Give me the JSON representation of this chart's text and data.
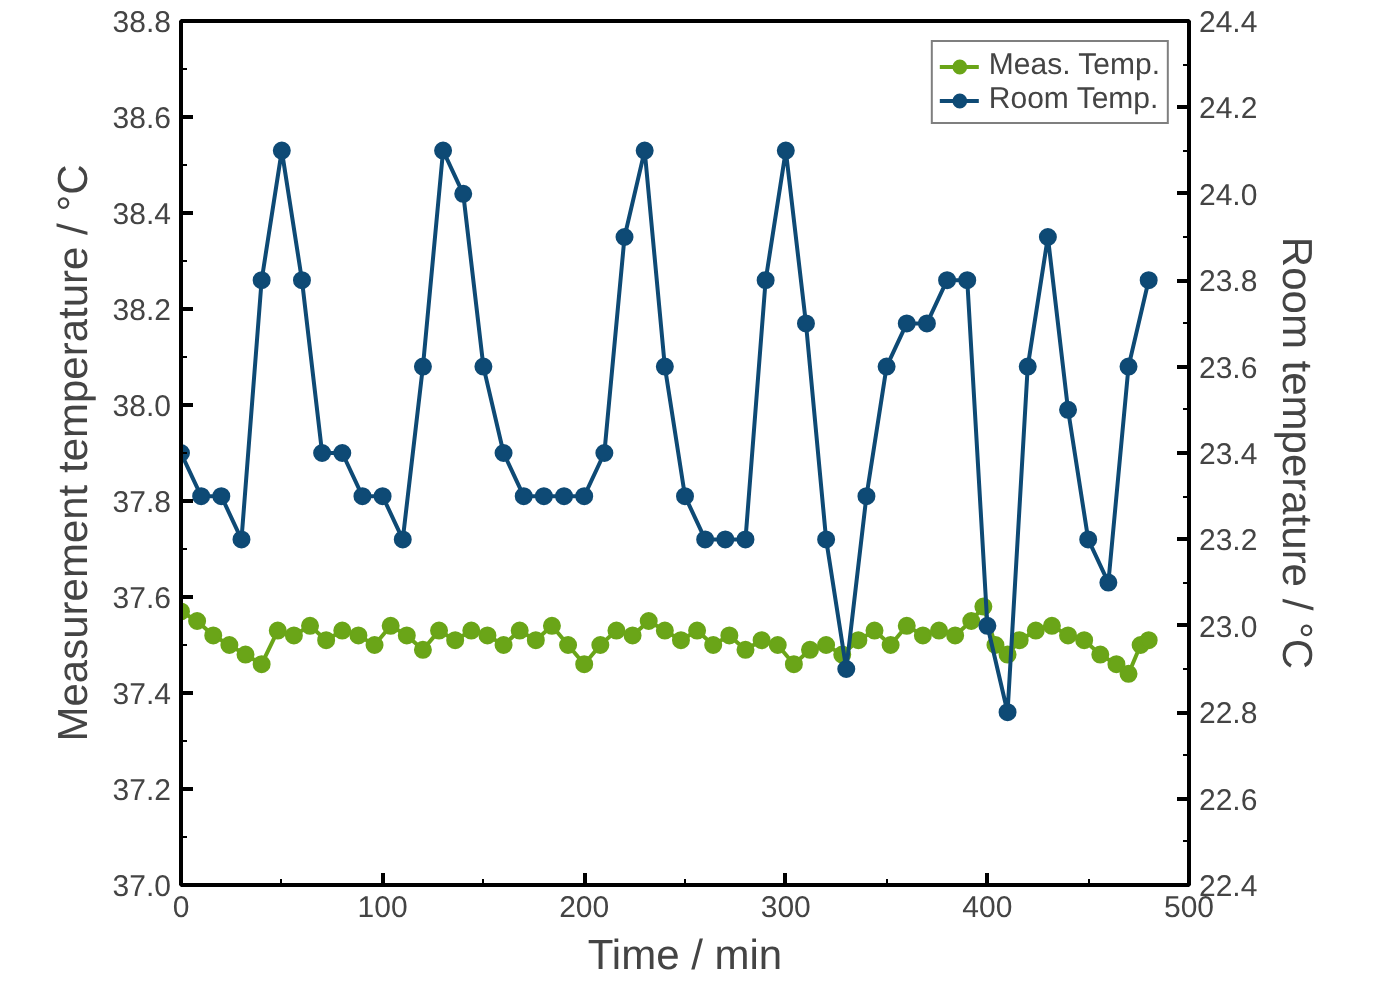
{
  "chart_data": {
    "type": "line",
    "xlabel": "Time / min",
    "ylabel": "Measurement temperature / °C",
    "y2label": "Room temperature / °C",
    "xlim": [
      0,
      500
    ],
    "xticks": [
      0,
      100,
      200,
      300,
      400,
      500
    ],
    "ylim": [
      37.0,
      38.8
    ],
    "yticks": [
      {
        "value": 37.0,
        "label": "37.0"
      },
      37.2,
      37.4,
      37.6,
      37.8,
      {
        "value": 38.0,
        "label": "38.0"
      },
      38.2,
      38.4,
      38.6,
      38.8
    ],
    "y2lim": [
      22.4,
      24.4
    ],
    "y2ticks": [
      22.4,
      22.6,
      22.8,
      {
        "value": 23.0,
        "label": "23.0"
      },
      23.2,
      23.4,
      23.6,
      23.8,
      {
        "value": 24.0,
        "label": "24.0"
      },
      24.2,
      24.4
    ],
    "legend": "top right",
    "marker": "circle",
    "grid": false,
    "series": [
      {
        "name": "Meas. Temp.",
        "color": "#6aa518",
        "x": [
          0,
          8,
          16,
          24,
          32,
          40,
          48,
          56,
          64,
          72,
          80,
          88,
          96,
          104,
          112,
          120,
          128,
          136,
          144,
          152,
          160,
          168,
          176,
          184,
          192,
          200,
          208,
          216,
          224,
          232,
          240,
          248,
          256,
          264,
          272,
          280,
          288,
          296,
          304,
          312,
          320,
          328,
          336,
          344,
          352,
          360,
          368,
          376,
          384,
          392,
          398,
          404,
          410,
          416,
          424,
          432,
          440,
          448,
          456,
          464,
          470,
          476,
          480
        ],
        "values": [
          37.57,
          37.55,
          37.52,
          37.5,
          37.48,
          37.46,
          37.53,
          37.52,
          37.54,
          37.51,
          37.53,
          37.52,
          37.5,
          37.54,
          37.52,
          37.49,
          37.53,
          37.51,
          37.53,
          37.52,
          37.5,
          37.53,
          37.51,
          37.54,
          37.5,
          37.46,
          37.5,
          37.53,
          37.52,
          37.55,
          37.53,
          37.51,
          37.53,
          37.5,
          37.52,
          37.49,
          37.51,
          37.5,
          37.46,
          37.49,
          37.5,
          37.48,
          37.51,
          37.53,
          37.5,
          37.54,
          37.52,
          37.53,
          37.52,
          37.55,
          37.58,
          37.5,
          37.48,
          37.51,
          37.53,
          37.54,
          37.52,
          37.51,
          37.48,
          37.46,
          37.44,
          37.5,
          37.51
        ]
      },
      {
        "name": "Room Temp.",
        "color": "#0e4a75",
        "axis": "y2",
        "x": [
          0,
          10,
          20,
          30,
          40,
          50,
          60,
          70,
          80,
          90,
          100,
          110,
          120,
          130,
          140,
          150,
          160,
          170,
          180,
          190,
          200,
          210,
          220,
          230,
          240,
          250,
          260,
          270,
          280,
          290,
          300,
          310,
          320,
          330,
          340,
          350,
          360,
          370,
          380,
          390,
          400,
          410,
          420,
          430,
          440,
          450,
          460,
          470,
          480
        ],
        "values": [
          23.4,
          23.3,
          23.3,
          23.2,
          23.8,
          24.1,
          23.8,
          23.4,
          23.4,
          23.3,
          23.3,
          23.2,
          23.6,
          24.1,
          24.0,
          23.6,
          23.4,
          23.3,
          23.3,
          23.3,
          23.3,
          23.4,
          23.9,
          24.1,
          23.6,
          23.3,
          23.2,
          23.2,
          23.2,
          23.8,
          24.1,
          23.7,
          23.2,
          22.9,
          23.3,
          23.6,
          23.7,
          23.7,
          23.8,
          23.8,
          23.0,
          22.8,
          23.6,
          23.9,
          23.5,
          23.2,
          23.1,
          23.6,
          23.8
        ]
      }
    ]
  }
}
